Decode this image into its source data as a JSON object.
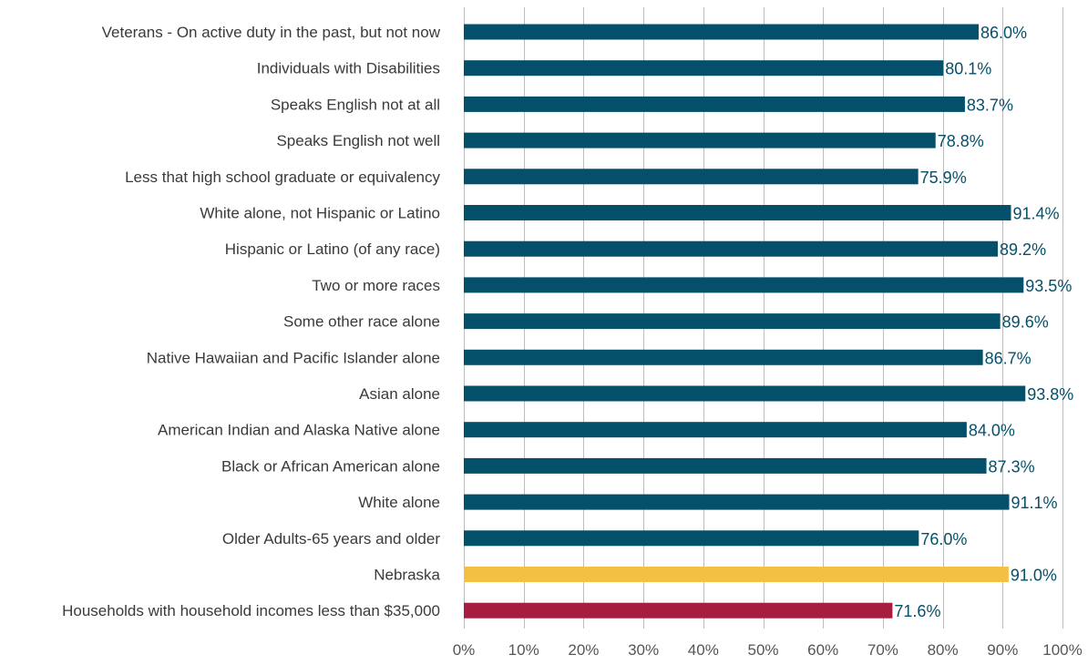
{
  "chart_data": {
    "type": "bar",
    "orientation": "horizontal",
    "title": "",
    "xlabel": "",
    "ylabel": "",
    "xlim": [
      0,
      100
    ],
    "grid": true,
    "categories": [
      "Veterans - On active duty in the past, but not now",
      "Individuals with Disabilities",
      "Speaks English not at all",
      "Speaks English not well",
      "Less that high school graduate or equivalency",
      "White alone, not Hispanic or Latino",
      "Hispanic or Latino (of any race)",
      "Two or more races",
      "Some other race alone",
      "Native Hawaiian and Pacific Islander alone",
      "Asian alone",
      "American Indian and Alaska Native alone",
      "Black or African American alone",
      "White alone",
      "Older Adults-65 years and older",
      "Nebraska",
      "Households with household incomes less than $35,000"
    ],
    "values": [
      86.0,
      80.1,
      83.7,
      78.8,
      75.9,
      91.4,
      89.2,
      93.5,
      89.6,
      86.7,
      93.8,
      84.0,
      87.3,
      91.1,
      76.0,
      91.0,
      71.6
    ],
    "value_labels": [
      "86.0%",
      "80.1%",
      "83.7%",
      "78.8%",
      "75.9%",
      "91.4%",
      "89.2%",
      "93.5%",
      "89.6%",
      "86.7%",
      "93.8%",
      "84.0%",
      "87.3%",
      "91.1%",
      "76.0%",
      "91.0%",
      "71.6%"
    ],
    "bar_colors": [
      "#04506b",
      "#04506b",
      "#04506b",
      "#04506b",
      "#04506b",
      "#04506b",
      "#04506b",
      "#04506b",
      "#04506b",
      "#04506b",
      "#04506b",
      "#04506b",
      "#04506b",
      "#04506b",
      "#04506b",
      "#f4c044",
      "#a71d42"
    ],
    "label_color": "#04506b",
    "ticks": [
      0,
      10,
      20,
      30,
      40,
      50,
      60,
      70,
      80,
      90,
      100
    ],
    "tick_labels": [
      "0%",
      "10%",
      "20%",
      "30%",
      "40%",
      "50%",
      "60%",
      "70%",
      "80%",
      "90%",
      "100%"
    ]
  }
}
